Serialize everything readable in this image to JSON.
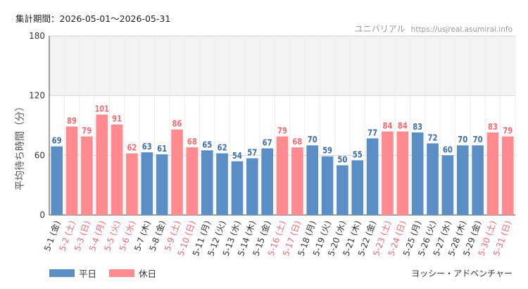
{
  "header": {
    "period_label": "集計期間：2026-05-01～2026-05-31",
    "site_name": "ユニバリアル",
    "site_url": "https://usjreal.asumirai.info"
  },
  "attraction": "ヨッシー・アドベンチャー",
  "legend": [
    {
      "name": "平日",
      "color": "#5b8ec4"
    },
    {
      "name": "休日",
      "color": "#ff8a8f"
    }
  ],
  "chart_data": {
    "type": "bar",
    "ylabel": "平均待ち時間（分）",
    "ylim": [
      0,
      180
    ],
    "yticks": [
      0,
      60,
      120,
      180
    ],
    "highlight_band": [
      120,
      180
    ],
    "categories": [
      "5-1 (金)",
      "5-2 (土)",
      "5-3 (日)",
      "5-4 (月)",
      "5-5 (火)",
      "5-6 (水)",
      "5-7 (木)",
      "5-8 (金)",
      "5-9 (土)",
      "5-10 (日)",
      "5-11 (月)",
      "5-12 (火)",
      "5-13 (水)",
      "5-14 (木)",
      "5-15 (金)",
      "5-16 (土)",
      "5-17 (日)",
      "5-18 (月)",
      "5-19 (火)",
      "5-20 (水)",
      "5-21 (木)",
      "5-22 (金)",
      "5-23 (土)",
      "5-24 (日)",
      "5-25 (月)",
      "5-26 (火)",
      "5-27 (水)",
      "5-28 (木)",
      "5-29 (金)",
      "5-30 (土)",
      "5-31 (日)"
    ],
    "values": [
      69,
      89,
      79,
      101,
      91,
      62,
      63,
      61,
      86,
      68,
      65,
      62,
      54,
      57,
      67,
      79,
      68,
      70,
      59,
      50,
      55,
      77,
      84,
      84,
      83,
      72,
      60,
      70,
      70,
      83,
      79
    ],
    "day_type": [
      "平日",
      "休日",
      "休日",
      "休日",
      "休日",
      "休日",
      "平日",
      "平日",
      "休日",
      "休日",
      "平日",
      "平日",
      "平日",
      "平日",
      "平日",
      "休日",
      "休日",
      "平日",
      "平日",
      "平日",
      "平日",
      "平日",
      "休日",
      "休日",
      "平日",
      "平日",
      "平日",
      "平日",
      "平日",
      "休日",
      "休日"
    ],
    "colors": {
      "平日": "#5b8ec4",
      "休日": "#ff8a8f"
    },
    "label_colors": {
      "平日": "#3e6fa8",
      "休日": "#f06a72"
    }
  }
}
